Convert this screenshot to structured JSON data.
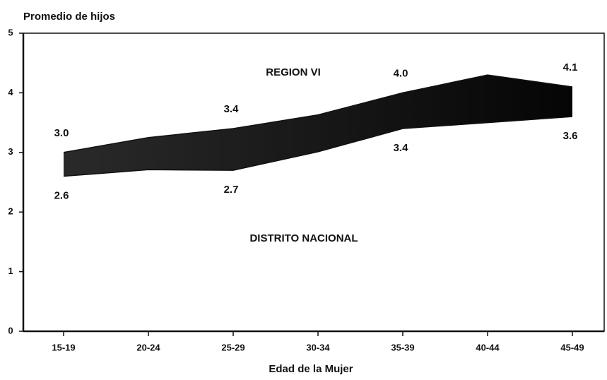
{
  "chart_data": {
    "type": "area",
    "title": "Promedio de hijos",
    "x_label": "Edad de la Mujer",
    "categories": [
      "15-19",
      "20-24",
      "25-29",
      "30-34",
      "35-39",
      "40-44",
      "45-49"
    ],
    "series": [
      {
        "name": "REGION VI",
        "color": "#111111",
        "values": [
          3.0,
          3.25,
          3.4,
          3.63,
          4.0,
          4.3,
          4.1
        ],
        "value_labels": [
          "3.0",
          null,
          "3.4",
          null,
          "4.0",
          null,
          "4.1"
        ]
      },
      {
        "name": "DISTRITO NACIONAL",
        "color": "#111111",
        "values": [
          2.6,
          2.71,
          2.7,
          3.01,
          3.4,
          3.5,
          3.6
        ],
        "value_labels": [
          "2.6",
          null,
          "2.7",
          null,
          "3.4",
          null,
          "3.6"
        ]
      }
    ],
    "ylim": [
      0,
      5
    ],
    "yticks": [
      0,
      1,
      2,
      3,
      4,
      5
    ],
    "grid": false
  }
}
